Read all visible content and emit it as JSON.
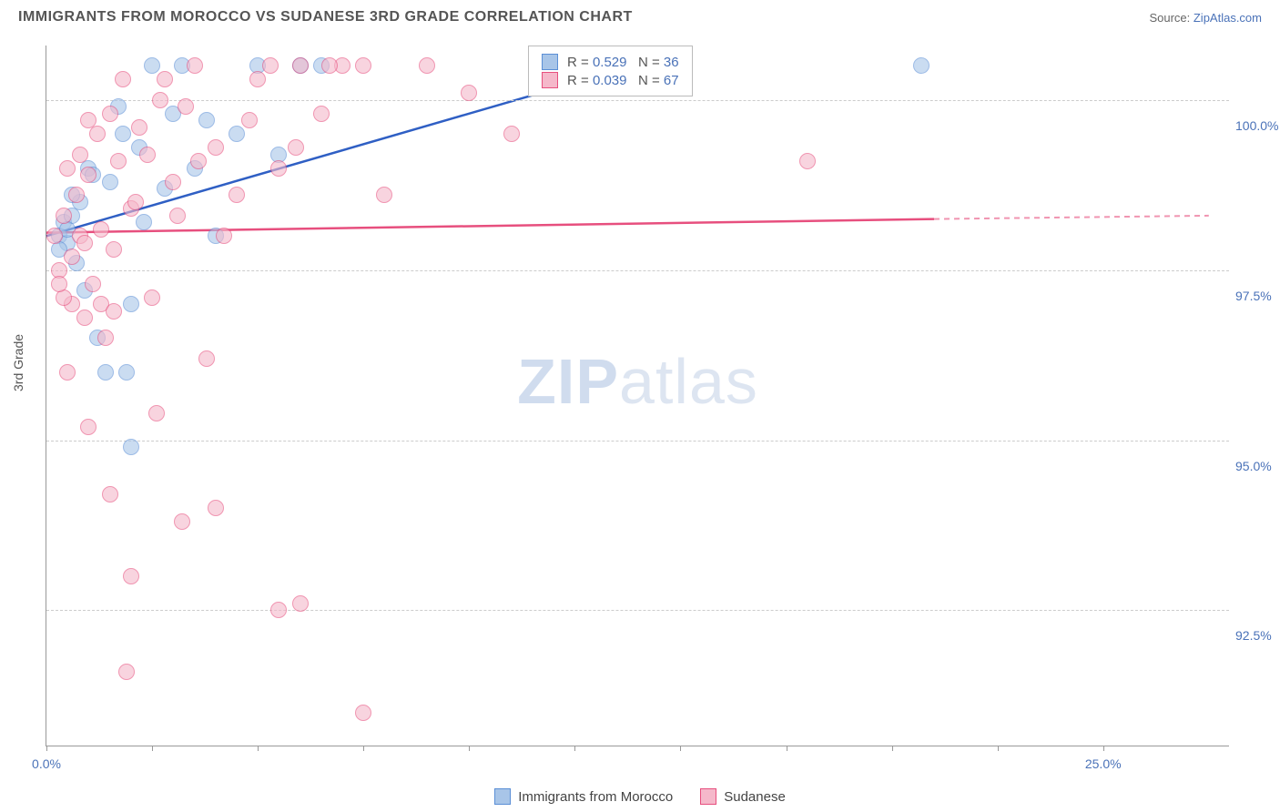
{
  "header": {
    "title": "IMMIGRANTS FROM MOROCCO VS SUDANESE 3RD GRADE CORRELATION CHART",
    "source_prefix": "Source: ",
    "source_name": "ZipAtlas.com"
  },
  "watermark": {
    "zip": "ZIP",
    "atlas": "atlas"
  },
  "chart": {
    "type": "scatter",
    "ylabel": "3rd Grade",
    "xlim": [
      0,
      28
    ],
    "ylim": [
      90.5,
      100.8
    ],
    "xticks": [
      0,
      2.5,
      5,
      7.5,
      10,
      12.5,
      15,
      17.5,
      20,
      22.5,
      25
    ],
    "xtick_labels": {
      "0": "0.0%",
      "25": "25.0%"
    },
    "yticks": [
      92.5,
      95.0,
      97.5,
      100.0
    ],
    "ytick_labels": [
      "92.5%",
      "95.0%",
      "97.5%",
      "100.0%"
    ],
    "background_color": "#ffffff",
    "grid_color": "#cccccc",
    "axis_color": "#999999",
    "label_color": "#4a72b8",
    "series": [
      {
        "name": "Immigrants from Morocco",
        "fill": "#a8c5e8",
        "stroke": "#5b8fd6",
        "line_color": "#2f5fc4",
        "R": "0.529",
        "N": "36",
        "trend": {
          "x1": 0,
          "y1": 98.0,
          "x2": 15,
          "y2": 100.7
        },
        "points": [
          [
            0.3,
            98.0
          ],
          [
            0.4,
            98.2
          ],
          [
            0.5,
            97.9
          ],
          [
            0.6,
            98.3
          ],
          [
            0.7,
            97.6
          ],
          [
            0.8,
            98.5
          ],
          [
            1.0,
            99.0
          ],
          [
            1.2,
            96.5
          ],
          [
            1.5,
            98.8
          ],
          [
            1.8,
            99.5
          ],
          [
            2.0,
            97.0
          ],
          [
            2.2,
            99.3
          ],
          [
            2.5,
            100.5
          ],
          [
            2.8,
            98.7
          ],
          [
            3.0,
            99.8
          ],
          [
            3.2,
            100.5
          ],
          [
            3.5,
            99.0
          ],
          [
            3.8,
            99.7
          ],
          [
            4.0,
            98.0
          ],
          [
            4.5,
            99.5
          ],
          [
            5.0,
            100.5
          ],
          [
            5.5,
            99.2
          ],
          [
            6.0,
            100.5
          ],
          [
            6.5,
            100.5
          ],
          [
            1.4,
            96.0
          ],
          [
            0.9,
            97.2
          ],
          [
            2.0,
            94.9
          ],
          [
            1.7,
            99.9
          ],
          [
            0.5,
            98.1
          ],
          [
            1.1,
            98.9
          ],
          [
            2.3,
            98.2
          ],
          [
            1.9,
            96.0
          ],
          [
            15.0,
            100.5
          ],
          [
            20.7,
            100.5
          ],
          [
            0.3,
            97.8
          ],
          [
            0.6,
            98.6
          ]
        ]
      },
      {
        "name": "Sudanese",
        "fill": "#f5b8ca",
        "stroke": "#e74f7e",
        "line_color": "#e74f7e",
        "R": "0.039",
        "N": "67",
        "trend": {
          "x1": 0,
          "y1": 98.05,
          "x2": 21,
          "y2": 98.25
        },
        "trend_dash_ext": {
          "x1": 21,
          "y1": 98.25,
          "x2": 27.5,
          "y2": 98.3
        },
        "points": [
          [
            0.2,
            98.0
          ],
          [
            0.3,
            97.5
          ],
          [
            0.4,
            98.3
          ],
          [
            0.5,
            99.0
          ],
          [
            0.6,
            97.0
          ],
          [
            0.7,
            98.6
          ],
          [
            0.8,
            99.2
          ],
          [
            0.9,
            96.8
          ],
          [
            1.0,
            98.9
          ],
          [
            1.1,
            97.3
          ],
          [
            1.2,
            99.5
          ],
          [
            1.3,
            98.1
          ],
          [
            1.4,
            96.5
          ],
          [
            1.5,
            99.8
          ],
          [
            1.6,
            97.8
          ],
          [
            1.8,
            100.3
          ],
          [
            2.0,
            98.4
          ],
          [
            2.2,
            99.6
          ],
          [
            2.5,
            97.1
          ],
          [
            2.8,
            100.3
          ],
          [
            3.0,
            98.8
          ],
          [
            3.3,
            99.9
          ],
          [
            3.5,
            100.5
          ],
          [
            3.8,
            96.2
          ],
          [
            4.0,
            99.3
          ],
          [
            4.5,
            98.6
          ],
          [
            5.0,
            100.3
          ],
          [
            5.5,
            99.0
          ],
          [
            6.0,
            100.5
          ],
          [
            6.5,
            99.8
          ],
          [
            7.0,
            100.5
          ],
          [
            8.0,
            98.6
          ],
          [
            9.0,
            100.5
          ],
          [
            10.0,
            100.1
          ],
          [
            11.0,
            99.5
          ],
          [
            18.0,
            99.1
          ],
          [
            0.5,
            96.0
          ],
          [
            1.0,
            95.2
          ],
          [
            1.5,
            94.2
          ],
          [
            2.0,
            93.0
          ],
          [
            3.2,
            93.8
          ],
          [
            4.0,
            94.0
          ],
          [
            5.5,
            92.5
          ],
          [
            6.0,
            92.6
          ],
          [
            7.5,
            91.0
          ],
          [
            1.9,
            91.6
          ],
          [
            2.6,
            95.4
          ],
          [
            0.4,
            97.1
          ],
          [
            0.6,
            97.7
          ],
          [
            0.8,
            98.0
          ],
          [
            1.0,
            99.7
          ],
          [
            1.3,
            97.0
          ],
          [
            1.7,
            99.1
          ],
          [
            2.1,
            98.5
          ],
          [
            2.4,
            99.2
          ],
          [
            2.7,
            100.0
          ],
          [
            3.1,
            98.3
          ],
          [
            3.6,
            99.1
          ],
          [
            4.2,
            98.0
          ],
          [
            4.8,
            99.7
          ],
          [
            5.3,
            100.5
          ],
          [
            5.9,
            99.3
          ],
          [
            6.7,
            100.5
          ],
          [
            7.5,
            100.5
          ],
          [
            0.3,
            97.3
          ],
          [
            0.9,
            97.9
          ],
          [
            1.6,
            96.9
          ]
        ]
      }
    ]
  },
  "stats_box": {
    "R_label": "R = ",
    "N_label": "N = "
  },
  "legend": {
    "items": [
      "Immigrants from Morocco",
      "Sudanese"
    ]
  }
}
